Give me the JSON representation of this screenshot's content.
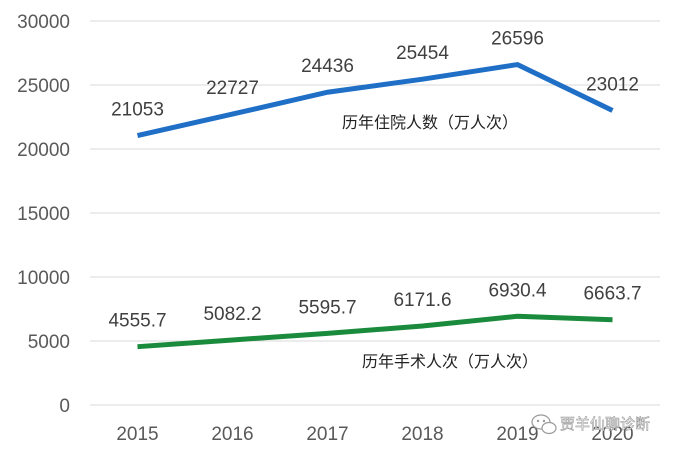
{
  "chart_data": {
    "type": "line",
    "categories": [
      "2015",
      "2016",
      "2017",
      "2018",
      "2019",
      "2020"
    ],
    "ylim": [
      0,
      30000
    ],
    "yticks": [
      0,
      5000,
      10000,
      15000,
      20000,
      25000,
      30000
    ],
    "grid": true,
    "series": [
      {
        "name": "历年住院人数（万人次）",
        "values": [
          21053,
          22727,
          24436,
          25454,
          26596,
          23012
        ],
        "labels": [
          "21053",
          "22727",
          "24436",
          "25454",
          "26596",
          "23012"
        ],
        "color": "#1f6fc6"
      },
      {
        "name": "历年手术人次（万人次）",
        "values": [
          4555.7,
          5082.2,
          5595.7,
          6171.6,
          6930.4,
          6663.7
        ],
        "labels": [
          "4555.7",
          "5082.2",
          "5595.7",
          "6171.6",
          "6930.4",
          "6663.7"
        ],
        "color": "#1a8a3c"
      }
    ]
  },
  "watermark": {
    "text": "贾羊仙聊诊断",
    "icon": "wechat-bubble-icon"
  }
}
